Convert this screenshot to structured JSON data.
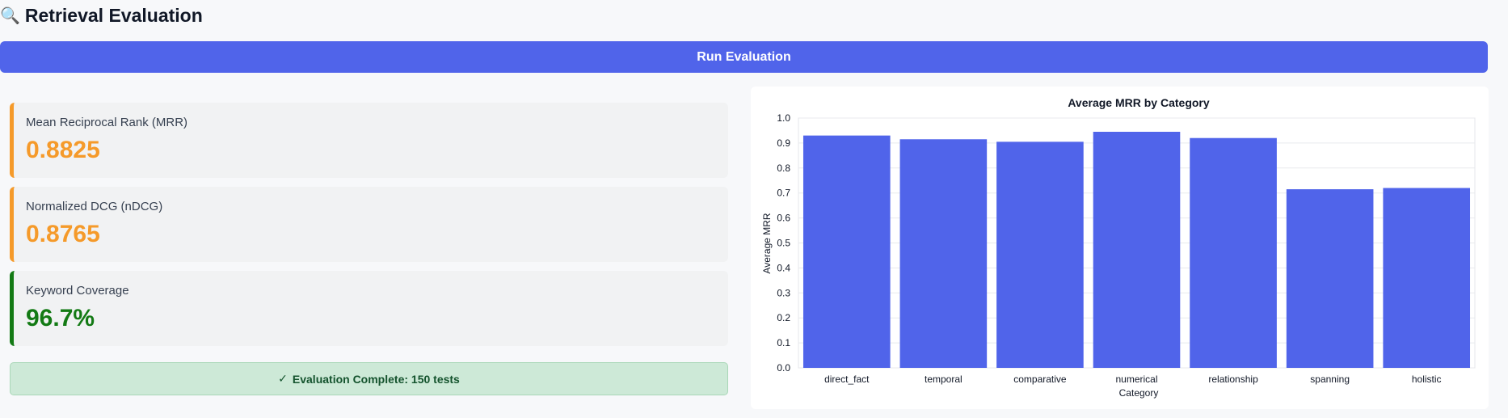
{
  "header": {
    "icon": "magnifier-icon",
    "icon_glyph": "🔍",
    "title": "Retrieval Evaluation"
  },
  "actions": {
    "run_label": "Run Evaluation"
  },
  "metrics": [
    {
      "label": "Mean Reciprocal Rank (MRR)",
      "value": "0.8825",
      "accent": "#f59a2a"
    },
    {
      "label": "Normalized DCG (nDCG)",
      "value": "0.8765",
      "accent": "#f59a2a"
    },
    {
      "label": "Keyword Coverage",
      "value": "96.7%",
      "accent": "#137a14"
    }
  ],
  "status": {
    "check": "✓",
    "text": "Evaluation Complete: 150 tests"
  },
  "colors": {
    "bar": "#5064ea",
    "button": "#5064ea"
  },
  "chart_data": {
    "type": "bar",
    "title": "Average MRR by Category",
    "xlabel": "Category",
    "ylabel": "Average MRR",
    "categories": [
      "direct_fact",
      "temporal",
      "comparative",
      "numerical",
      "relationship",
      "spanning",
      "holistic"
    ],
    "values": [
      0.93,
      0.915,
      0.905,
      0.945,
      0.92,
      0.715,
      0.72
    ],
    "ylim": [
      0,
      1.0
    ],
    "yticks": [
      "0.0",
      "0.1",
      "0.2",
      "0.3",
      "0.4",
      "0.5",
      "0.6",
      "0.7",
      "0.8",
      "0.9",
      "1.0"
    ],
    "grid": true
  }
}
